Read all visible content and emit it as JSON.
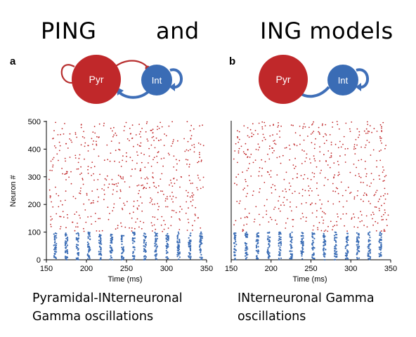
{
  "title": {
    "part1": "PING",
    "part2": "and",
    "part3": "ING models"
  },
  "panels": [
    {
      "letter": "a",
      "pyr_label": "Pyr",
      "int_label": "Int",
      "ylabel": "Neuron #",
      "xlabel": "Time (ms)",
      "yticks": [
        "0",
        "100",
        "200",
        "300",
        "400",
        "500"
      ],
      "xticks": [
        "150",
        "200",
        "250",
        "300",
        "350"
      ],
      "caption_line1": "Pyramidal-INterneuronal",
      "caption_line2": "Gamma oscillations"
    },
    {
      "letter": "b",
      "pyr_label": "Pyr",
      "int_label": "Int",
      "xlabel": "Time (ms)",
      "xticks": [
        "150",
        "200",
        "250",
        "300",
        "350"
      ],
      "caption_line1": "INterneuronal Gamma",
      "caption_line2": "oscillations"
    }
  ],
  "colors": {
    "pyr": "#c0282a",
    "int": "#3a6cb5",
    "arrow_pyr": "#b83030",
    "arrow_int": "#3f6fb8"
  },
  "raster": {
    "xlim": [
      150,
      350
    ],
    "ylim": [
      0,
      500
    ],
    "int_range": [
      0,
      100
    ],
    "pyr_range": [
      100,
      500
    ],
    "int_burst_times_a": [
      161,
      175,
      189,
      203,
      217,
      231,
      245,
      259,
      273,
      287,
      301,
      315,
      329,
      343
    ],
    "int_burst_times_b": [
      155,
      169,
      183,
      197,
      211,
      225,
      239,
      253,
      267,
      281,
      295,
      309,
      323,
      337
    ]
  }
}
